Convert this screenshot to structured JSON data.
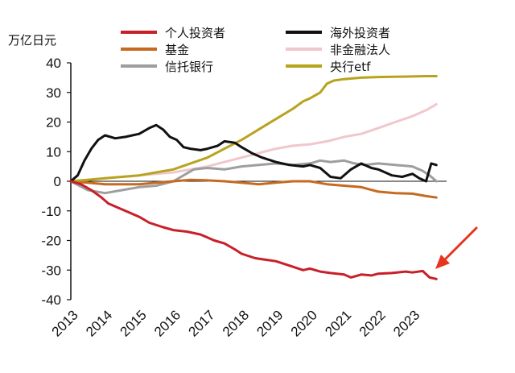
{
  "chart_data": {
    "type": "line",
    "ylabel": "万亿日元",
    "xlabel": "",
    "ylim": [
      -40,
      40
    ],
    "yticks": [
      40,
      30,
      20,
      10,
      0,
      -10,
      -20,
      -30,
      -40
    ],
    "xticks": [
      "2013",
      "2014",
      "2015",
      "2016",
      "2017",
      "2018",
      "2019",
      "2020",
      "2021",
      "2022",
      "2023"
    ],
    "legend_position": "top",
    "series": [
      {
        "name": "个人投资者",
        "color": "#c8202b",
        "x": [
          2013.0,
          2013.3,
          2013.6,
          2013.9,
          2014.1,
          2014.4,
          2014.7,
          2015.0,
          2015.3,
          2015.7,
          2016.0,
          2016.4,
          2016.8,
          2017.2,
          2017.5,
          2017.8,
          2018.0,
          2018.4,
          2018.7,
          2019.0,
          2019.4,
          2019.8,
          2020.0,
          2020.3,
          2020.6,
          2021.0,
          2021.2,
          2021.5,
          2021.8,
          2022.0,
          2022.4,
          2022.8,
          2023.0,
          2023.3,
          2023.5,
          2023.7
        ],
        "values": [
          0,
          -1,
          -3,
          -5.5,
          -7.5,
          -9,
          -10.5,
          -12,
          -14,
          -15.5,
          -16.5,
          -17,
          -18,
          -20,
          -21,
          -23,
          -24.5,
          -26,
          -26.5,
          -27,
          -28.5,
          -30,
          -29.5,
          -30.5,
          -31,
          -31.5,
          -32.5,
          -31.5,
          -31.8,
          -31.2,
          -31,
          -30.5,
          -30.8,
          -30.3,
          -32.5,
          -33
        ]
      },
      {
        "name": "海外投资者",
        "color": "#111111",
        "x": [
          2013.0,
          2013.2,
          2013.4,
          2013.6,
          2013.8,
          2014.0,
          2014.3,
          2014.6,
          2015.0,
          2015.3,
          2015.5,
          2015.7,
          2015.9,
          2016.1,
          2016.3,
          2016.5,
          2016.8,
          2017.0,
          2017.3,
          2017.5,
          2017.8,
          2018.0,
          2018.3,
          2018.6,
          2019.0,
          2019.4,
          2019.8,
          2020.0,
          2020.3,
          2020.6,
          2020.9,
          2021.2,
          2021.5,
          2021.8,
          2022.0,
          2022.4,
          2022.7,
          2023.0,
          2023.2,
          2023.4,
          2023.55,
          2023.7
        ],
        "values": [
          0,
          2,
          7,
          11,
          14,
          15.5,
          14.5,
          15,
          16,
          18,
          19,
          17.5,
          15,
          14,
          11.5,
          11,
          10.5,
          11,
          12,
          13.5,
          13,
          11.5,
          9.5,
          8,
          6.5,
          5.5,
          5,
          5.5,
          4.5,
          1.5,
          1,
          4,
          6,
          4.5,
          4,
          2,
          1.5,
          2.5,
          1,
          0,
          6,
          5.5
        ]
      },
      {
        "name": "基金",
        "color": "#c56a1f",
        "x": [
          2013.0,
          2013.5,
          2014.0,
          2014.5,
          2015.0,
          2015.5,
          2016.0,
          2016.5,
          2017.0,
          2017.5,
          2018.0,
          2018.5,
          2019.0,
          2019.5,
          2020.0,
          2020.5,
          2021.0,
          2021.5,
          2022.0,
          2022.5,
          2023.0,
          2023.4,
          2023.7
        ],
        "values": [
          0,
          -0.5,
          -1,
          -1,
          -1,
          -0.5,
          0,
          0.5,
          0.3,
          0,
          -0.5,
          -1,
          -0.5,
          0,
          0,
          -1,
          -1.5,
          -2,
          -3.5,
          -4,
          -4.2,
          -5,
          -5.5
        ]
      },
      {
        "name": "非金融法人",
        "color": "#f0c7cc",
        "x": [
          2013.0,
          2013.5,
          2014.0,
          2014.5,
          2015.0,
          2015.5,
          2016.0,
          2016.5,
          2017.0,
          2017.5,
          2018.0,
          2018.5,
          2019.0,
          2019.5,
          2020.0,
          2020.5,
          2021.0,
          2021.5,
          2022.0,
          2022.5,
          2023.0,
          2023.4,
          2023.7
        ],
        "values": [
          0,
          0.5,
          1,
          1.5,
          2,
          2.5,
          3,
          4,
          5,
          6.5,
          8,
          9.5,
          11,
          12,
          12.5,
          13.5,
          15,
          16,
          18,
          20,
          22,
          24,
          26
        ]
      },
      {
        "name": "信托银行",
        "color": "#9e9e9e",
        "x": [
          2013.0,
          2013.5,
          2014.0,
          2014.5,
          2015.0,
          2015.5,
          2016.0,
          2016.3,
          2016.6,
          2017.0,
          2017.5,
          2018.0,
          2018.5,
          2019.0,
          2019.5,
          2020.0,
          2020.3,
          2020.6,
          2021.0,
          2021.3,
          2021.6,
          2022.0,
          2022.5,
          2023.0,
          2023.3,
          2023.5,
          2023.7
        ],
        "values": [
          0,
          -3,
          -4,
          -3,
          -2,
          -1.5,
          0,
          2,
          4,
          4.5,
          4,
          5,
          5.5,
          6,
          5.5,
          6,
          7,
          6.5,
          7,
          6,
          5.5,
          6,
          5.5,
          5,
          3.5,
          2,
          0
        ]
      },
      {
        "name": "央行etf",
        "color": "#b8a31f",
        "x": [
          2013.0,
          2013.5,
          2014.0,
          2014.5,
          2015.0,
          2015.5,
          2016.0,
          2016.5,
          2017.0,
          2017.5,
          2018.0,
          2018.5,
          2019.0,
          2019.5,
          2019.8,
          2020.0,
          2020.3,
          2020.5,
          2020.7,
          2021.0,
          2021.5,
          2022.0,
          2022.5,
          2023.0,
          2023.4,
          2023.7
        ],
        "values": [
          0,
          0.5,
          1,
          1.5,
          2,
          3,
          4,
          6,
          8,
          11,
          14,
          17.5,
          21,
          24.5,
          27,
          28,
          30,
          33,
          34,
          34.5,
          35,
          35.2,
          35.3,
          35.4,
          35.5,
          35.5
        ]
      }
    ]
  }
}
